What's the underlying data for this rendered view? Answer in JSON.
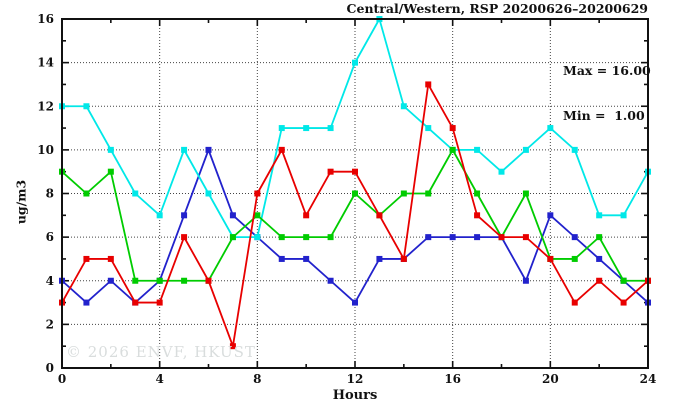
{
  "header": {
    "title": "Central/Western, RSP 20200626–20200629"
  },
  "legend": {
    "max_label": "Max = 16.00",
    "min_label": "Min =  1.00"
  },
  "watermark": "© 2026 ENVF, HKUST",
  "axis": {
    "xlabel": "Hours",
    "ylabel": "ug/m3"
  },
  "chart_data": {
    "type": "line",
    "title": "Central/Western, RSP 20200626–20200629",
    "xlabel": "Hours",
    "ylabel": "ug/m3",
    "xlim": [
      0,
      24
    ],
    "ylim": [
      0,
      16
    ],
    "x_major_ticks": [
      0,
      4,
      8,
      12,
      16,
      20,
      24
    ],
    "x_minor_step": 2,
    "y_major_ticks": [
      0,
      2,
      4,
      6,
      8,
      10,
      12,
      14,
      16
    ],
    "y_minor_step": 1,
    "grid": true,
    "grid_x_lines": [
      4,
      8,
      12,
      16,
      20
    ],
    "grid_y_lines": [
      2,
      4,
      6,
      8,
      10,
      12,
      14
    ],
    "legend_position": "top-right-inside",
    "stats": {
      "max": 16.0,
      "min": 1.0
    },
    "x": [
      0,
      1,
      2,
      3,
      4,
      5,
      6,
      7,
      8,
      9,
      10,
      11,
      12,
      13,
      14,
      15,
      16,
      17,
      18,
      19,
      20,
      21,
      22,
      23,
      24
    ],
    "series": [
      {
        "name": "series-blue",
        "color": "#2222cc",
        "values": [
          4,
          3,
          4,
          3,
          4,
          7,
          10,
          7,
          6,
          5,
          5,
          4,
          3,
          5,
          5,
          6,
          6,
          6,
          6,
          4,
          7,
          6,
          5,
          4,
          3
        ]
      },
      {
        "name": "series-cyan",
        "color": "#00e8e8",
        "values": [
          12,
          12,
          10,
          8,
          7,
          10,
          8,
          6,
          6,
          11,
          11,
          11,
          14,
          16,
          12,
          11,
          10,
          10,
          9,
          10,
          11,
          10,
          7,
          7,
          9
        ]
      },
      {
        "name": "series-green",
        "color": "#00cc00",
        "values": [
          9,
          8,
          9,
          4,
          4,
          4,
          4,
          6,
          7,
          6,
          6,
          6,
          8,
          7,
          8,
          8,
          10,
          8,
          6,
          8,
          5,
          5,
          6,
          4,
          4
        ]
      },
      {
        "name": "series-red",
        "color": "#e80000",
        "values": [
          3,
          5,
          5,
          3,
          3,
          6,
          4,
          1,
          8,
          10,
          7,
          9,
          9,
          7,
          5,
          13,
          11,
          7,
          6,
          6,
          5,
          3,
          4,
          3,
          4
        ]
      }
    ],
    "plot_style": {
      "frame_color": "#111111",
      "grid_color": "#444444",
      "tick_label_color": "#111111",
      "marker": "square",
      "marker_size": 6,
      "line_width": 1.8
    }
  }
}
